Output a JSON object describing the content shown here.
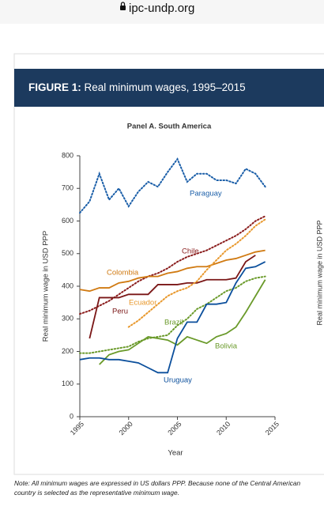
{
  "browser": {
    "url": "ipc-undp.org"
  },
  "figure": {
    "label": "FIGURE 1:",
    "title": "Real minimum wages, 1995–2015"
  },
  "side_panel_ylabel": "Real minimum wage in USD PPP",
  "note": [
    "Note: All minimum wages are expressed in US dollars PPP. Because none of the Central American",
    "country is selected as the representative minimum wage."
  ],
  "chart_data": {
    "type": "line",
    "title": "Panel A. South America",
    "xlabel": "Year",
    "ylabel": "Real minimum wage in USD PPP",
    "x": [
      1995,
      1996,
      1997,
      1998,
      1999,
      2000,
      2001,
      2002,
      2003,
      2004,
      2005,
      2006,
      2007,
      2008,
      2009,
      2010,
      2011,
      2012,
      2013,
      2014
    ],
    "xlim": [
      1995,
      2015
    ],
    "xticks": [
      1995,
      2000,
      2005,
      2010,
      2015
    ],
    "ylim": [
      0,
      800
    ],
    "yticks": [
      0,
      100,
      200,
      300,
      400,
      500,
      600,
      700,
      800
    ],
    "grid": false,
    "series": [
      {
        "name": "Paraguay",
        "color": "#1a5ea8",
        "style": "dotted",
        "values": [
          625,
          660,
          745,
          665,
          700,
          645,
          690,
          720,
          705,
          750,
          790,
          720,
          745,
          745,
          725,
          725,
          715,
          760,
          745,
          705
        ]
      },
      {
        "name": "Chile",
        "color": "#8a1c1c",
        "style": "dotted",
        "values": [
          315,
          325,
          340,
          355,
          375,
          395,
          415,
          430,
          440,
          455,
          475,
          490,
          500,
          510,
          525,
          540,
          555,
          575,
          600,
          615
        ]
      },
      {
        "name": "Colombia",
        "color": "#d07a12",
        "style": "solid",
        "values": [
          390,
          385,
          395,
          395,
          410,
          415,
          425,
          430,
          430,
          440,
          445,
          455,
          460,
          460,
          470,
          480,
          485,
          495,
          505,
          510
        ]
      },
      {
        "name": "Peru",
        "color": "#7a1616",
        "style": "solid",
        "values": [
          null,
          240,
          365,
          365,
          365,
          375,
          375,
          375,
          405,
          405,
          405,
          410,
          410,
          420,
          420,
          420,
          425,
          475,
          495,
          null
        ]
      },
      {
        "name": "Ecuador",
        "color": "#e8982c",
        "style": "dotted",
        "values": [
          null,
          null,
          null,
          null,
          null,
          275,
          295,
          320,
          345,
          370,
          385,
          395,
          415,
          450,
          480,
          510,
          530,
          555,
          585,
          605
        ]
      },
      {
        "name": "Brazil",
        "color": "#6a9a2a",
        "style": "dotted",
        "values": [
          195,
          195,
          200,
          205,
          210,
          215,
          230,
          240,
          245,
          250,
          280,
          300,
          330,
          345,
          365,
          385,
          395,
          415,
          425,
          430
        ]
      },
      {
        "name": "Bolivia",
        "color": "#6a9a2a",
        "style": "solid",
        "values": [
          null,
          null,
          160,
          190,
          200,
          205,
          225,
          245,
          240,
          235,
          220,
          245,
          235,
          225,
          245,
          255,
          275,
          320,
          370,
          420
        ]
      },
      {
        "name": "Uruguay",
        "color": "#0b4f9c",
        "style": "solid",
        "values": [
          175,
          180,
          180,
          175,
          175,
          170,
          165,
          150,
          135,
          135,
          240,
          290,
          290,
          345,
          345,
          350,
          410,
          455,
          460,
          475
        ]
      }
    ]
  }
}
